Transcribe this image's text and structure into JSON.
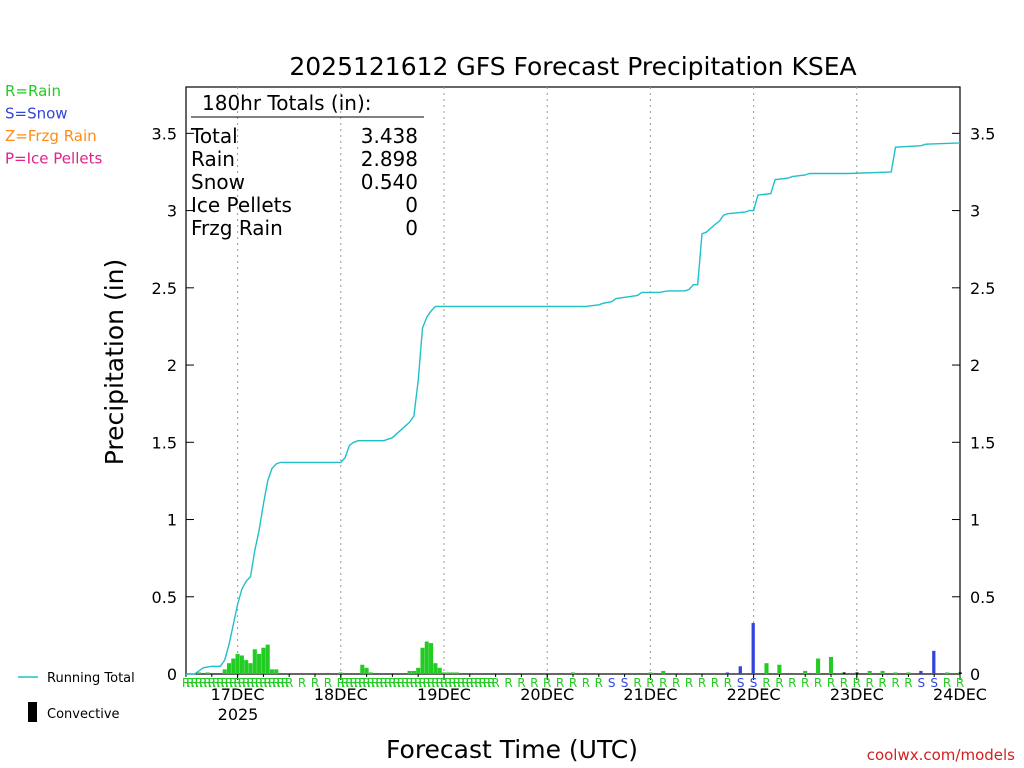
{
  "chart_data": {
    "type": "bar+line",
    "title": "2025121612 GFS Forecast Precipitation KSEA",
    "xlabel": "Forecast Time (UTC)",
    "ylabel": "Precipitation (in)",
    "ylim": [
      0,
      3.8
    ],
    "yticks": [
      "0",
      "0.5",
      "1",
      "1.5",
      "2",
      "2.5",
      "3",
      "3.5"
    ],
    "ytick_values": [
      0,
      0.5,
      1,
      1.5,
      2,
      2.5,
      3,
      3.5
    ],
    "xlim_hours": [
      0,
      180
    ],
    "day_ticks": [
      {
        "label": "17DEC",
        "hour": 12
      },
      {
        "label": "18DEC",
        "hour": 36
      },
      {
        "label": "19DEC",
        "hour": 60
      },
      {
        "label": "20DEC",
        "hour": 84
      },
      {
        "label": "21DEC",
        "hour": 108
      },
      {
        "label": "22DEC",
        "hour": 132
      },
      {
        "label": "23DEC",
        "hour": 156
      },
      {
        "label": "24DEC",
        "hour": 180
      }
    ],
    "year_label": "2025",
    "totals_box": {
      "header": "180hr Totals (in):",
      "rows": [
        {
          "label": "Total",
          "value": "3.438"
        },
        {
          "label": "Rain",
          "value": "2.898"
        },
        {
          "label": "Snow",
          "value": "0.540"
        },
        {
          "label": "Ice Pellets",
          "value": "0"
        },
        {
          "label": "Frzg Rain",
          "value": "0"
        }
      ]
    },
    "precip_type_legend": [
      {
        "text": "R=Rain",
        "color": "#22cc22"
      },
      {
        "text": "S=Snow",
        "color": "#3344dd"
      },
      {
        "text": "Z=Frzg Rain",
        "color": "#ff8c1a"
      },
      {
        "text": "P=Ice Pellets",
        "color": "#dd2288"
      }
    ],
    "series_legend": [
      {
        "name": "Running Total",
        "color": "#20c0c8",
        "kind": "line"
      },
      {
        "name": "Convective",
        "color": "#000000",
        "kind": "bar"
      }
    ],
    "running_total": {
      "hours": [
        0,
        2,
        3,
        4,
        6,
        8,
        9,
        10,
        11,
        12,
        13,
        14,
        15,
        16,
        17,
        18,
        19,
        20,
        21,
        22,
        36,
        37,
        38,
        39,
        40,
        41,
        42,
        44,
        46,
        48,
        52,
        53,
        54,
        55,
        56,
        57,
        58,
        59,
        60,
        61,
        62,
        63,
        90,
        93,
        96,
        97,
        99,
        100,
        105,
        106,
        110,
        112,
        113,
        116,
        117,
        118,
        119,
        120,
        121,
        123,
        124,
        125,
        126,
        130,
        131,
        132,
        133,
        136,
        137,
        140,
        141,
        144,
        145,
        153,
        154,
        164,
        165,
        171,
        172,
        180
      ],
      "values": [
        0,
        0,
        0.02,
        0.04,
        0.05,
        0.05,
        0.09,
        0.19,
        0.32,
        0.45,
        0.55,
        0.6,
        0.63,
        0.8,
        0.93,
        1.1,
        1.25,
        1.33,
        1.36,
        1.37,
        1.37,
        1.4,
        1.48,
        1.5,
        1.51,
        1.51,
        1.51,
        1.51,
        1.51,
        1.53,
        1.63,
        1.67,
        1.9,
        2.24,
        2.31,
        2.35,
        2.38,
        2.38,
        2.38,
        2.38,
        2.38,
        2.38,
        2.38,
        2.38,
        2.39,
        2.4,
        2.41,
        2.43,
        2.45,
        2.47,
        2.47,
        2.48,
        2.48,
        2.48,
        2.49,
        2.52,
        2.52,
        2.85,
        2.86,
        2.91,
        2.93,
        2.97,
        2.98,
        2.99,
        3.0,
        3.0,
        3.1,
        3.11,
        3.2,
        3.21,
        3.22,
        3.23,
        3.24,
        3.24,
        3.24,
        3.25,
        3.41,
        3.42,
        3.43,
        3.438
      ]
    },
    "bars": {
      "hours": [
        3,
        5,
        9,
        10,
        11,
        12,
        13,
        14,
        15,
        16,
        17,
        18,
        19,
        20,
        21,
        36,
        41,
        42,
        43,
        52,
        53,
        54,
        55,
        56,
        57,
        58,
        59,
        60,
        61,
        62,
        63,
        90,
        108,
        111,
        126,
        129,
        132,
        135,
        138,
        144,
        147,
        150,
        153,
        156,
        159,
        162,
        165,
        168,
        171,
        174,
        177,
        180
      ],
      "values": [
        0.01,
        0.01,
        0.03,
        0.07,
        0.1,
        0.13,
        0.12,
        0.09,
        0.07,
        0.16,
        0.13,
        0.17,
        0.19,
        0.03,
        0.03,
        0.01,
        0.06,
        0.04,
        0.01,
        0.02,
        0.02,
        0.04,
        0.17,
        0.21,
        0.2,
        0.07,
        0.04,
        0.01,
        0.01,
        0.01,
        0.01,
        0.01,
        0.01,
        0.02,
        0.01,
        0.05,
        0.33,
        0.07,
        0.06,
        0.02,
        0.1,
        0.11,
        0.01,
        0.01,
        0.02,
        0.02,
        0.01,
        0.01,
        0.02,
        0.15,
        0.01,
        0.01
      ],
      "types": [
        "R",
        "R",
        "R",
        "R",
        "R",
        "R",
        "R",
        "R",
        "R",
        "R",
        "R",
        "R",
        "R",
        "R",
        "R",
        "R",
        "R",
        "R",
        "R",
        "R",
        "R",
        "R",
        "R",
        "R",
        "R",
        "R",
        "R",
        "R",
        "R",
        "R",
        "R",
        "R",
        "R",
        "R",
        "S",
        "S",
        "S",
        "R",
        "R",
        "R",
        "R",
        "R",
        "R",
        "R",
        "R",
        "R",
        "R",
        "R",
        "S",
        "S",
        "R",
        "R"
      ]
    },
    "convective_bars": {
      "hours": [
        153,
        156,
        180
      ],
      "values": [
        0.01,
        0.01,
        0.01
      ]
    },
    "ptype_strip": {
      "hours": [
        0,
        1,
        2,
        3,
        4,
        5,
        6,
        7,
        8,
        9,
        10,
        11,
        12,
        13,
        14,
        15,
        16,
        17,
        18,
        19,
        20,
        21,
        22,
        23,
        24,
        27,
        30,
        33,
        36,
        37,
        38,
        39,
        40,
        41,
        42,
        43,
        44,
        45,
        46,
        47,
        48,
        49,
        50,
        51,
        52,
        53,
        54,
        55,
        56,
        57,
        58,
        59,
        60,
        61,
        62,
        63,
        64,
        65,
        66,
        67,
        68,
        69,
        70,
        71,
        72,
        75,
        78,
        81,
        84,
        87,
        90,
        93,
        96,
        99,
        102,
        105,
        108,
        111,
        114,
        117,
        120,
        123,
        126,
        129,
        132,
        135,
        138,
        141,
        144,
        147,
        150,
        153,
        156,
        159,
        162,
        165,
        168,
        171,
        174,
        177,
        180
      ],
      "types": [
        "R",
        "R",
        "R",
        "R",
        "R",
        "R",
        "R",
        "R",
        "R",
        "R",
        "R",
        "R",
        "R",
        "R",
        "R",
        "R",
        "R",
        "R",
        "R",
        "R",
        "R",
        "R",
        "R",
        "R",
        "R",
        "R",
        "R",
        "R",
        "R",
        "R",
        "R",
        "R",
        "R",
        "R",
        "R",
        "R",
        "R",
        "R",
        "R",
        "R",
        "R",
        "R",
        "R",
        "R",
        "R",
        "R",
        "R",
        "R",
        "R",
        "R",
        "R",
        "R",
        "R",
        "R",
        "R",
        "R",
        "R",
        "R",
        "R",
        "R",
        "R",
        "R",
        "R",
        "R",
        "R",
        "R",
        "R",
        "R",
        "R",
        "R",
        "R",
        "R",
        "R",
        "S",
        "S",
        "R",
        "R",
        "R",
        "R",
        "R",
        "R",
        "R",
        "R",
        "S",
        "S",
        "R",
        "R",
        "R",
        "R",
        "R",
        "R",
        "R",
        "R",
        "R",
        "R",
        "R",
        "R",
        "S",
        "S",
        "R",
        "R"
      ]
    }
  },
  "colors": {
    "rain": "#22cc22",
    "snow": "#3344dd",
    "frzg_rain": "#ff8c1a",
    "ice_pellets": "#dd2288",
    "running_total": "#20c0c8",
    "convective": "#000000",
    "grid": "#999999",
    "credit": "#d42020"
  },
  "credit": "coolwx.com/models"
}
